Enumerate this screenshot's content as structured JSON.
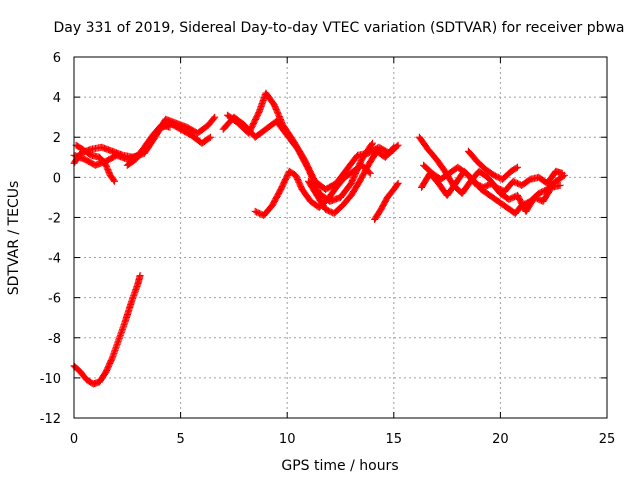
{
  "chart_data": {
    "type": "scatter",
    "title": "Day 331 of 2019, Sidereal Day-to-day VTEC variation (SDTVAR) for receiver pbwa",
    "xlabel": "GPS time / hours",
    "ylabel": "SDTVAR / TECUs",
    "xlim": [
      0,
      25
    ],
    "ylim": [
      -12,
      6
    ],
    "xticks": [
      0,
      5,
      10,
      15,
      20,
      25
    ],
    "yticks": [
      -12,
      -10,
      -8,
      -6,
      -4,
      -2,
      0,
      2,
      4,
      6
    ],
    "grid": true,
    "marker": "+",
    "color": "#ff0000",
    "series": [
      {
        "name": "trace-1",
        "points": [
          [
            0.0,
            0.7
          ],
          [
            0.3,
            1.2
          ],
          [
            0.8,
            1.4
          ],
          [
            1.3,
            1.5
          ],
          [
            1.8,
            1.3
          ],
          [
            2.3,
            1.1
          ],
          [
            2.8,
            1.0
          ],
          [
            3.3,
            1.2
          ],
          [
            3.8,
            2.0
          ],
          [
            4.3,
            2.9
          ],
          [
            4.8,
            2.7
          ],
          [
            5.3,
            2.5
          ],
          [
            5.8,
            2.2
          ],
          [
            6.3,
            2.6
          ],
          [
            6.6,
            3.0
          ]
        ]
      },
      {
        "name": "trace-2",
        "points": [
          [
            0.0,
            1.1
          ],
          [
            0.5,
            0.9
          ],
          [
            1.0,
            0.6
          ],
          [
            1.5,
            0.8
          ],
          [
            2.0,
            1.1
          ],
          [
            2.5,
            0.9
          ],
          [
            3.0,
            1.1
          ],
          [
            3.5,
            1.7
          ],
          [
            4.0,
            2.4
          ],
          [
            4.5,
            2.7
          ],
          [
            5.0,
            2.4
          ],
          [
            5.5,
            2.1
          ],
          [
            6.0,
            1.7
          ],
          [
            6.4,
            2.0
          ]
        ]
      },
      {
        "name": "trace-3",
        "points": [
          [
            0.1,
            1.6
          ],
          [
            0.4,
            1.4
          ],
          [
            0.8,
            1.1
          ],
          [
            1.2,
            1.0
          ],
          [
            1.5,
            0.6
          ],
          [
            1.7,
            0.1
          ],
          [
            1.9,
            -0.2
          ]
        ]
      },
      {
        "name": "trace-4",
        "points": [
          [
            2.5,
            0.6
          ],
          [
            2.9,
            0.9
          ],
          [
            3.3,
            1.5
          ],
          [
            3.7,
            2.1
          ],
          [
            4.1,
            2.6
          ],
          [
            4.5,
            2.5
          ]
        ]
      },
      {
        "name": "trace-5",
        "points": [
          [
            0.0,
            -9.4
          ],
          [
            0.3,
            -9.7
          ],
          [
            0.6,
            -10.1
          ],
          [
            0.9,
            -10.3
          ],
          [
            1.2,
            -10.2
          ],
          [
            1.5,
            -9.7
          ],
          [
            1.8,
            -9.0
          ],
          [
            2.1,
            -8.1
          ],
          [
            2.4,
            -7.2
          ],
          [
            2.7,
            -6.2
          ],
          [
            3.0,
            -5.3
          ],
          [
            3.1,
            -4.9
          ]
        ]
      },
      {
        "name": "trace-6",
        "points": [
          [
            7.0,
            2.4
          ],
          [
            7.5,
            3.0
          ],
          [
            8.0,
            2.6
          ],
          [
            8.5,
            2.0
          ],
          [
            9.0,
            2.4
          ],
          [
            9.5,
            2.8
          ],
          [
            10.0,
            2.1
          ],
          [
            10.5,
            1.4
          ],
          [
            11.0,
            0.4
          ],
          [
            11.5,
            -0.8
          ],
          [
            12.0,
            -1.2
          ],
          [
            12.5,
            -1.0
          ],
          [
            13.0,
            -0.3
          ],
          [
            13.5,
            0.9
          ],
          [
            14.0,
            1.7
          ]
        ]
      },
      {
        "name": "trace-7",
        "points": [
          [
            7.2,
            3.1
          ],
          [
            7.7,
            2.7
          ],
          [
            8.2,
            2.2
          ],
          [
            8.7,
            3.3
          ],
          [
            9.0,
            4.2
          ],
          [
            9.4,
            3.6
          ],
          [
            9.8,
            2.6
          ],
          [
            10.3,
            1.8
          ],
          [
            10.8,
            0.9
          ],
          [
            11.3,
            -0.2
          ],
          [
            11.8,
            -0.6
          ],
          [
            12.3,
            -0.3
          ],
          [
            12.8,
            0.4
          ],
          [
            13.3,
            1.1
          ],
          [
            13.8,
            1.2
          ],
          [
            14.3,
            1.5
          ],
          [
            14.8,
            1.2
          ],
          [
            15.2,
            1.6
          ]
        ]
      },
      {
        "name": "trace-8",
        "points": [
          [
            8.5,
            -1.7
          ],
          [
            8.9,
            -1.9
          ],
          [
            9.3,
            -1.4
          ],
          [
            9.7,
            -0.6
          ],
          [
            10.1,
            0.3
          ],
          [
            10.4,
            0.1
          ],
          [
            10.7,
            -0.6
          ],
          [
            11.1,
            -1.2
          ],
          [
            11.5,
            -1.5
          ],
          [
            11.9,
            -1.1
          ],
          [
            12.3,
            -0.5
          ],
          [
            12.7,
            0.0
          ],
          [
            13.1,
            0.3
          ],
          [
            13.5,
            0.6
          ],
          [
            13.9,
            0.2
          ]
        ]
      },
      {
        "name": "trace-9",
        "points": [
          [
            14.1,
            -2.1
          ],
          [
            14.4,
            -1.6
          ],
          [
            14.7,
            -1.0
          ],
          [
            15.0,
            -0.6
          ],
          [
            15.2,
            -0.3
          ]
        ]
      },
      {
        "name": "trace-10",
        "points": [
          [
            11.0,
            -0.2
          ],
          [
            11.4,
            -0.9
          ],
          [
            11.8,
            -1.6
          ],
          [
            12.2,
            -1.8
          ],
          [
            12.6,
            -1.4
          ],
          [
            13.0,
            -0.9
          ],
          [
            13.4,
            -0.2
          ],
          [
            13.8,
            0.6
          ],
          [
            14.2,
            1.3
          ],
          [
            14.6,
            1.0
          ],
          [
            15.0,
            1.5
          ]
        ]
      },
      {
        "name": "trace-11",
        "points": [
          [
            16.2,
            2.0
          ],
          [
            16.6,
            1.4
          ],
          [
            17.0,
            0.9
          ],
          [
            17.4,
            0.3
          ],
          [
            17.8,
            -0.4
          ],
          [
            18.2,
            -0.8
          ],
          [
            18.6,
            -0.2
          ],
          [
            19.0,
            0.3
          ],
          [
            19.4,
            0.0
          ],
          [
            19.8,
            -0.5
          ],
          [
            20.2,
            -0.7
          ],
          [
            20.6,
            -0.2
          ],
          [
            21.0,
            -0.4
          ],
          [
            21.4,
            -0.1
          ],
          [
            21.8,
            0.0
          ],
          [
            22.2,
            -0.3
          ],
          [
            22.6,
            0.3
          ],
          [
            22.9,
            0.2
          ]
        ]
      },
      {
        "name": "trace-12",
        "points": [
          [
            16.3,
            -0.5
          ],
          [
            16.7,
            0.2
          ],
          [
            17.1,
            -0.3
          ],
          [
            17.5,
            -0.9
          ],
          [
            17.9,
            -0.3
          ],
          [
            18.3,
            0.3
          ],
          [
            18.7,
            -0.1
          ],
          [
            19.1,
            -0.6
          ],
          [
            19.5,
            -0.9
          ],
          [
            19.9,
            -1.2
          ],
          [
            20.3,
            -1.5
          ],
          [
            20.7,
            -1.8
          ],
          [
            21.0,
            -1.4
          ],
          [
            21.4,
            -1.2
          ],
          [
            21.8,
            -0.8
          ],
          [
            22.2,
            -0.6
          ],
          [
            22.6,
            -0.2
          ],
          [
            23.0,
            0.1
          ]
        ]
      },
      {
        "name": "trace-13",
        "points": [
          [
            18.5,
            1.3
          ],
          [
            18.9,
            0.8
          ],
          [
            19.3,
            0.4
          ],
          [
            19.7,
            0.1
          ],
          [
            20.1,
            -0.1
          ],
          [
            20.5,
            0.3
          ],
          [
            20.8,
            0.5
          ]
        ]
      },
      {
        "name": "trace-14",
        "points": [
          [
            16.4,
            0.6
          ],
          [
            16.8,
            0.2
          ],
          [
            17.2,
            -0.1
          ],
          [
            17.6,
            0.2
          ],
          [
            18.0,
            0.5
          ],
          [
            18.4,
            0.2
          ],
          [
            18.8,
            -0.3
          ],
          [
            19.2,
            -0.5
          ],
          [
            19.6,
            -0.3
          ],
          [
            20.0,
            -0.8
          ],
          [
            20.4,
            -1.1
          ],
          [
            20.8,
            -0.9
          ],
          [
            21.2,
            -1.7
          ],
          [
            21.6,
            -1.0
          ],
          [
            22.0,
            -1.2
          ],
          [
            22.4,
            -0.5
          ],
          [
            22.8,
            -0.4
          ]
        ]
      }
    ]
  }
}
